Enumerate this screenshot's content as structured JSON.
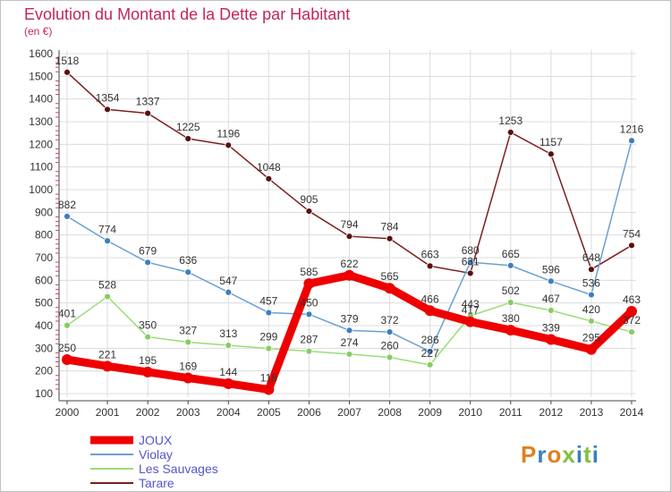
{
  "chart_data": {
    "type": "line",
    "title": "Evolution du Montant de la Dette par Habitant",
    "subtitle": "(en €)",
    "x": [
      "2000",
      "2001",
      "2002",
      "2003",
      "2004",
      "2005",
      "2006",
      "2007",
      "2008",
      "2009",
      "2010",
      "2011",
      "2012",
      "2013",
      "2014"
    ],
    "yticks": [
      100,
      200,
      300,
      400,
      500,
      600,
      700,
      800,
      900,
      1000,
      1100,
      1200,
      1300,
      1400,
      1500,
      1600
    ],
    "ylim": [
      100,
      1600
    ],
    "grid": true,
    "legend_placement": "bottom-left",
    "series": [
      {
        "name": "Tarare",
        "color": "#7a1f1f",
        "point_color": "#5a1010",
        "values": [
          1518,
          1354,
          1337,
          1225,
          1196,
          1048,
          905,
          794,
          784,
          663,
          631,
          1253,
          1157,
          648,
          754
        ],
        "labels": [
          "1518",
          "1354",
          "1337",
          "1225",
          "1196",
          "1048",
          "905",
          "794",
          "784",
          "663",
          "631",
          "1253",
          "1157",
          "648",
          "754"
        ]
      },
      {
        "name": "Violay",
        "color": "#6aa0d0",
        "point_color": "#3a7fc0",
        "values": [
          882,
          774,
          679,
          636,
          547,
          457,
          450,
          379,
          372,
          286,
          680,
          665,
          596,
          536,
          1216
        ],
        "labels": [
          "882",
          "774",
          "679",
          "636",
          "547",
          "457",
          "450",
          "379",
          "372",
          "286",
          "680",
          "665",
          "596",
          "536",
          "1216"
        ]
      },
      {
        "name": "Les Sauvages",
        "color": "#99dd77",
        "point_color": "#88cc66",
        "values": [
          401,
          528,
          350,
          327,
          313,
          299,
          287,
          274,
          260,
          227,
          443,
          502,
          467,
          420,
          372
        ],
        "labels": [
          "401",
          "528",
          "350",
          "327",
          "313",
          "299",
          "287",
          "274",
          "260",
          "227",
          "443",
          "502",
          "467",
          "420",
          "372"
        ]
      },
      {
        "name": "JOUX",
        "color": "#ee0000",
        "point_color": "#ee0000",
        "values": [
          250,
          221,
          195,
          169,
          144,
          118,
          585,
          622,
          565,
          466,
          417,
          380,
          339,
          295,
          463
        ],
        "labels": [
          "250",
          "221",
          "195",
          "169",
          "144",
          "118",
          "585",
          "622",
          "565",
          "466",
          "417",
          "380",
          "339",
          "295",
          "463"
        ]
      }
    ]
  },
  "legend": [
    "JOUX",
    "Violay",
    "Les Sauvages",
    "Tarare"
  ],
  "brand": {
    "text": "Proxiti",
    "colors": [
      "#e08020",
      "#3a7fc0",
      "#e08020",
      "#80c040",
      "#3a7fc0",
      "#80c040",
      "#3a7fc0"
    ]
  }
}
